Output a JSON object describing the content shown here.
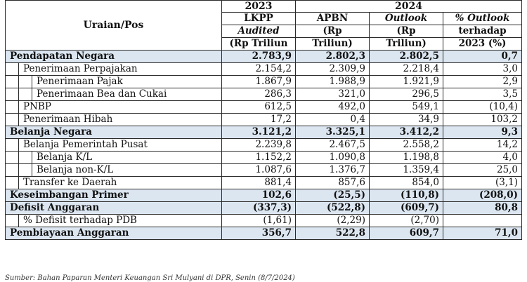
{
  "header": {
    "col0": "Uraian/Pos",
    "year_2023": "2023",
    "year_2024": "2024",
    "lkpp": [
      "LKPP",
      "Audited",
      "(Rp Triliun"
    ],
    "apbn": [
      "APBN",
      "(Rp",
      "Triliun)"
    ],
    "outlook": [
      "Outlook",
      "(Rp",
      "Triliun)"
    ],
    "pct": [
      "% Outlook",
      "terhadap",
      "2023 (%)"
    ]
  },
  "rows": [
    {
      "label": "Pendapatan Negara",
      "level": 0,
      "v": [
        "2.783,9",
        "2.802,3",
        "2.802,5",
        "0,7"
      ]
    },
    {
      "label": "Penerimaan Perpajakan",
      "level": 1,
      "v": [
        "2.154,2",
        "2.309,9",
        "2.218,4",
        "3,0"
      ]
    },
    {
      "label": "Penerimaan Pajak",
      "level": 2,
      "v": [
        "1.867,9",
        "1.988,9",
        "1.921,9",
        "2,9"
      ]
    },
    {
      "label": "Penerimaan Bea dan Cukai",
      "level": 2,
      "v": [
        "286,3",
        "321,0",
        "296,5",
        "3,5"
      ]
    },
    {
      "label": "PNBP",
      "level": 1,
      "v": [
        "612,5",
        "492,0",
        "549,1",
        "(10,4)"
      ]
    },
    {
      "label": "Penerimaan Hibah",
      "level": 1,
      "v": [
        "17,2",
        "0,4",
        "34,9",
        "103,2"
      ]
    },
    {
      "label": "Belanja Negara",
      "level": 0,
      "v": [
        "3.121,2",
        "3.325,1",
        "3.412,2",
        "9,3"
      ]
    },
    {
      "label": "Belanja Pemerintah Pusat",
      "level": 1,
      "v": [
        "2.239,8",
        "2.467,5",
        "2.558,2",
        "14,2"
      ]
    },
    {
      "label": "Belanja K/L",
      "level": 2,
      "v": [
        "1.152,2",
        "1.090,8",
        "1.198,8",
        "4,0"
      ]
    },
    {
      "label": "Belanja non-K/L",
      "level": 2,
      "v": [
        "1.087,6",
        "1.376,7",
        "1.359,4",
        "25,0"
      ]
    },
    {
      "label": "Transfer ke Daerah",
      "level": 1,
      "v": [
        "881,4",
        "857,6",
        "854,0",
        "(3,1)"
      ]
    },
    {
      "label": "Keseimbangan Primer",
      "level": 0,
      "v": [
        "102,6",
        "(25,5)",
        "(110,8)",
        "(208,0)"
      ]
    },
    {
      "label": "Defisit Anggaran",
      "level": 0,
      "v": [
        "(337,3)",
        "(522,8)",
        "(609,7)",
        "80,8"
      ]
    },
    {
      "label": "% Defisit terhadap PDB",
      "level": 1,
      "v": [
        "(1,61)",
        "(2,29)",
        "(2,70)",
        ""
      ]
    },
    {
      "label": "Pembiayaan Anggaran",
      "level": 0,
      "v": [
        "356,7",
        "522,8",
        "609,7",
        "71,0"
      ]
    }
  ],
  "source": "Sumber: Bahan Paparan Menteri Keuangan Sri Mulyani di DPR, Senin (8/7/2024)"
}
